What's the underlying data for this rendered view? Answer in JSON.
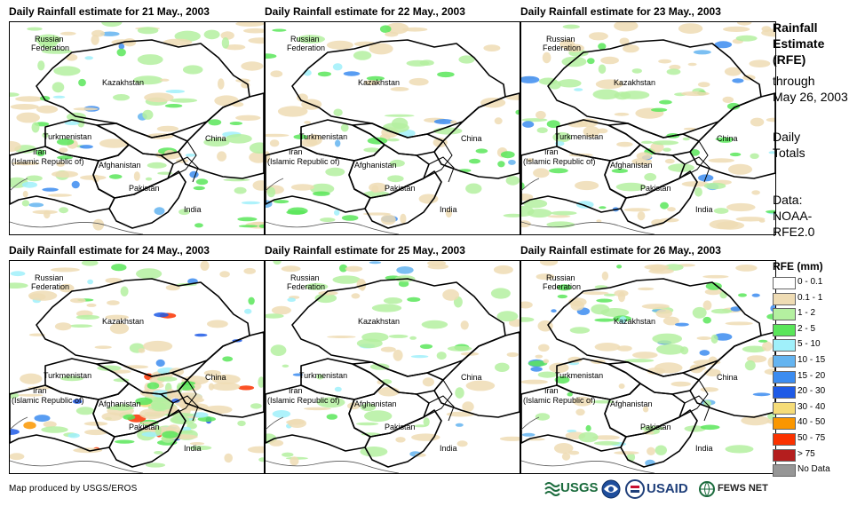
{
  "panels": [
    {
      "title": "Daily Rainfall estimate for 21 May., 2003",
      "rain_level": "moderate"
    },
    {
      "title": "Daily Rainfall estimate for 22 May., 2003",
      "rain_level": "light"
    },
    {
      "title": "Daily Rainfall estimate for 23 May., 2003",
      "rain_level": "moderate"
    },
    {
      "title": "Daily Rainfall estimate for 24 May., 2003",
      "rain_level": "heavy"
    },
    {
      "title": "Daily Rainfall estimate for 25 May., 2003",
      "rain_level": "light"
    },
    {
      "title": "Daily Rainfall estimate for 26 May., 2003",
      "rain_level": "moderate"
    }
  ],
  "map_labels": {
    "russia_1": "Russian",
    "russia_2": "Federation",
    "kazakhstan": "Kazakhstan",
    "turkmenistan": "Turkmenistan",
    "iran_1": "Iran",
    "iran_2": "(Islamic Republic of)",
    "afghanistan": "Afghanistan",
    "pakistan": "Pakistan",
    "china": "China",
    "india": "India"
  },
  "sidebar": {
    "title_1": "Rainfall",
    "title_2": "Estimate",
    "title_3": "(RFE)",
    "through_1": "through",
    "through_2": "May 26, 2003",
    "totals_1": "Daily",
    "totals_2": "Totals",
    "data_1": "Data:",
    "data_2": "NOAA-",
    "data_3": "RFE2.0"
  },
  "legend": {
    "title": "RFE (mm)",
    "items": [
      {
        "label": "0 - 0.1",
        "color": "#ffffff"
      },
      {
        "label": "0.1 - 1",
        "color": "#efdcb4"
      },
      {
        "label": "1 - 2",
        "color": "#b4f0a0"
      },
      {
        "label": "2 - 5",
        "color": "#5ae65a"
      },
      {
        "label": "5 - 10",
        "color": "#a0f0fa"
      },
      {
        "label": "10 - 15",
        "color": "#64b4f0"
      },
      {
        "label": "15 - 20",
        "color": "#3c8cf0"
      },
      {
        "label": "20 - 30",
        "color": "#1e5ae6"
      },
      {
        "label": "30 - 40",
        "color": "#f5dc78"
      },
      {
        "label": "40 - 50",
        "color": "#fa9600"
      },
      {
        "label": "50 - 75",
        "color": "#fa3200"
      },
      {
        "label": "> 75",
        "color": "#b41e1e"
      },
      {
        "label": "No Data",
        "color": "#969696"
      }
    ]
  },
  "footer": {
    "credit": "Map produced by USGS/EROS"
  },
  "logos": {
    "usgs": "USGS",
    "usaid": "USAID",
    "fewsnet": "FEWS NET"
  }
}
